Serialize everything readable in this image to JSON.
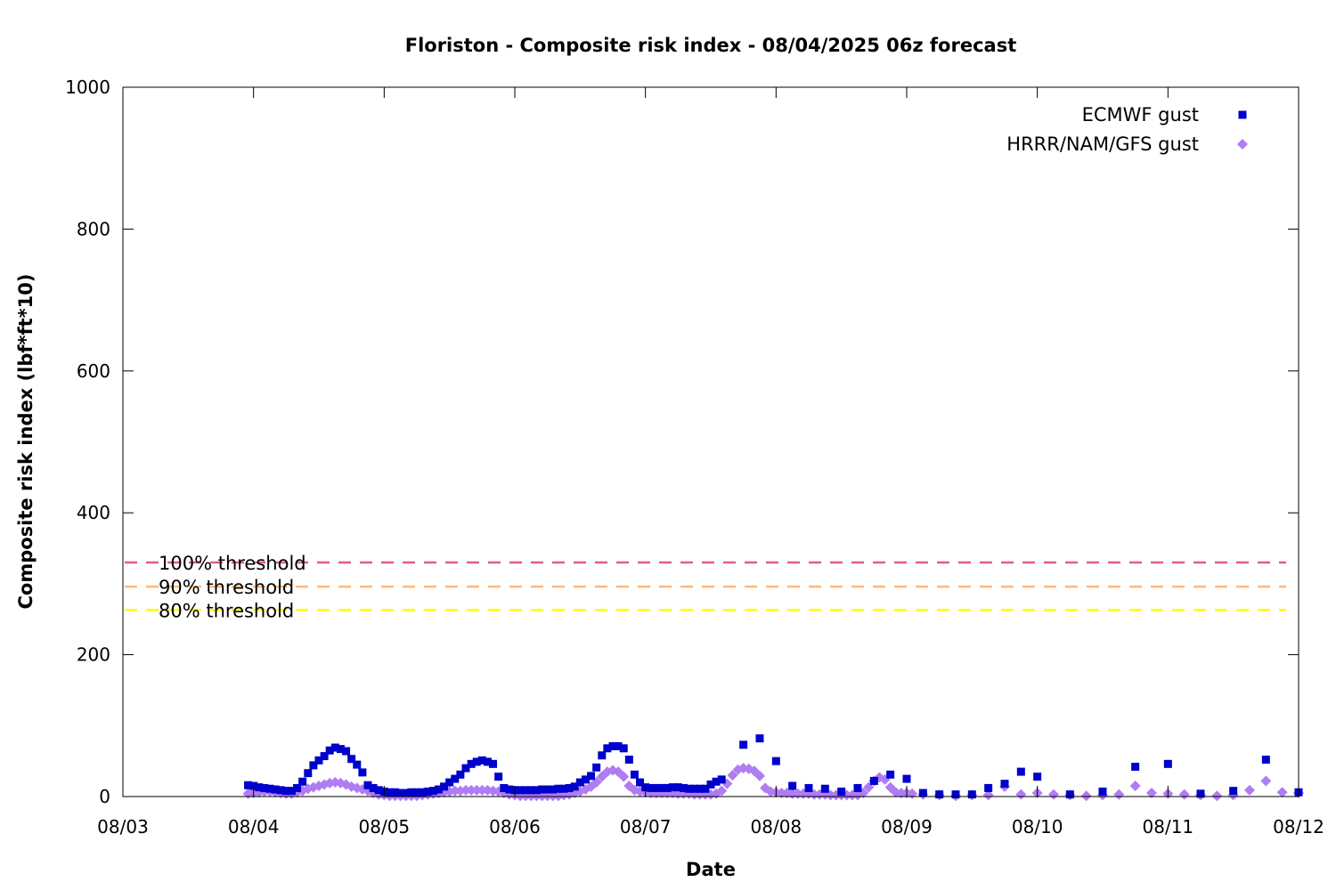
{
  "chart_data": {
    "type": "scatter",
    "title": "Floriston - Composite risk index - 08/04/2025 06z forecast",
    "xlabel": "Date",
    "ylabel": "Composite risk index (lbf*ft*10)",
    "x_unit": "days since 08/03 00z",
    "xlim": [
      0,
      9
    ],
    "ylim": [
      0,
      1000
    ],
    "x_ticks": [
      {
        "x": 0,
        "label": "08/03"
      },
      {
        "x": 1,
        "label": "08/04"
      },
      {
        "x": 2,
        "label": "08/05"
      },
      {
        "x": 3,
        "label": "08/06"
      },
      {
        "x": 4,
        "label": "08/07"
      },
      {
        "x": 5,
        "label": "08/08"
      },
      {
        "x": 6,
        "label": "08/09"
      },
      {
        "x": 7,
        "label": "08/10"
      },
      {
        "x": 8,
        "label": "08/11"
      },
      {
        "x": 9,
        "label": "08/12"
      }
    ],
    "y_ticks": [
      {
        "y": 0,
        "label": "0"
      },
      {
        "y": 200,
        "label": "200"
      },
      {
        "y": 400,
        "label": "400"
      },
      {
        "y": 600,
        "label": "600"
      },
      {
        "y": 800,
        "label": "800"
      },
      {
        "y": 1000,
        "label": "1000"
      }
    ],
    "grid": false,
    "legend_position": "top-right",
    "thresholds": [
      {
        "label": "100% threshold",
        "y": 330,
        "color": "#e0607e"
      },
      {
        "label": "90% threshold",
        "y": 296,
        "color": "#ffb87a"
      },
      {
        "label": "80% threshold",
        "y": 263,
        "color": "#ffff00"
      }
    ],
    "series": [
      {
        "name": "ECMWF gust",
        "marker": "square",
        "color": "#0000cc",
        "points": [
          [
            0.9583,
            16
          ],
          [
            1.0,
            15
          ],
          [
            1.0417,
            13
          ],
          [
            1.0833,
            12
          ],
          [
            1.125,
            11
          ],
          [
            1.1667,
            10
          ],
          [
            1.2083,
            9
          ],
          [
            1.25,
            8
          ],
          [
            1.2917,
            8
          ],
          [
            1.3333,
            12
          ],
          [
            1.375,
            21
          ],
          [
            1.4167,
            33
          ],
          [
            1.4583,
            44
          ],
          [
            1.5,
            51
          ],
          [
            1.5417,
            57
          ],
          [
            1.5833,
            65
          ],
          [
            1.625,
            69
          ],
          [
            1.6667,
            67
          ],
          [
            1.7083,
            64
          ],
          [
            1.75,
            53
          ],
          [
            1.7917,
            45
          ],
          [
            1.8333,
            34
          ],
          [
            1.875,
            16
          ],
          [
            1.9167,
            12
          ],
          [
            1.9583,
            9
          ],
          [
            2.0,
            7
          ],
          [
            2.0417,
            6
          ],
          [
            2.0833,
            6
          ],
          [
            2.125,
            5
          ],
          [
            2.1667,
            5
          ],
          [
            2.2083,
            6
          ],
          [
            2.25,
            6
          ],
          [
            2.2917,
            6
          ],
          [
            2.3333,
            7
          ],
          [
            2.375,
            8
          ],
          [
            2.4167,
            10
          ],
          [
            2.4583,
            14
          ],
          [
            2.5,
            20
          ],
          [
            2.5417,
            25
          ],
          [
            2.5833,
            31
          ],
          [
            2.625,
            40
          ],
          [
            2.6667,
            46
          ],
          [
            2.7083,
            49
          ],
          [
            2.75,
            51
          ],
          [
            2.7917,
            49
          ],
          [
            2.8333,
            46
          ],
          [
            2.875,
            28
          ],
          [
            2.9167,
            12
          ],
          [
            2.9583,
            10
          ],
          [
            3.0,
            9
          ],
          [
            3.0417,
            9
          ],
          [
            3.0833,
            9
          ],
          [
            3.125,
            9
          ],
          [
            3.1667,
            9
          ],
          [
            3.2083,
            10
          ],
          [
            3.25,
            10
          ],
          [
            3.2917,
            10
          ],
          [
            3.3333,
            11
          ],
          [
            3.375,
            11
          ],
          [
            3.4167,
            12
          ],
          [
            3.4583,
            14
          ],
          [
            3.5,
            20
          ],
          [
            3.5417,
            24
          ],
          [
            3.5833,
            29
          ],
          [
            3.625,
            41
          ],
          [
            3.6667,
            58
          ],
          [
            3.7083,
            68
          ],
          [
            3.75,
            71
          ],
          [
            3.7917,
            71
          ],
          [
            3.8333,
            68
          ],
          [
            3.875,
            52
          ],
          [
            3.9167,
            31
          ],
          [
            3.9583,
            20
          ],
          [
            4.0,
            13
          ],
          [
            4.0417,
            12
          ],
          [
            4.0833,
            12
          ],
          [
            4.125,
            12
          ],
          [
            4.1667,
            12
          ],
          [
            4.2083,
            13
          ],
          [
            4.25,
            13
          ],
          [
            4.2917,
            12
          ],
          [
            4.3333,
            11
          ],
          [
            4.375,
            11
          ],
          [
            4.4167,
            11
          ],
          [
            4.4583,
            11
          ],
          [
            4.5,
            17
          ],
          [
            4.5417,
            21
          ],
          [
            4.5833,
            24
          ],
          [
            4.75,
            73
          ],
          [
            4.875,
            82
          ],
          [
            5.0,
            50
          ],
          [
            5.125,
            15
          ],
          [
            5.25,
            12
          ],
          [
            5.375,
            11
          ],
          [
            5.5,
            7
          ],
          [
            5.625,
            12
          ],
          [
            5.75,
            22
          ],
          [
            5.875,
            31
          ],
          [
            6.0,
            25
          ],
          [
            6.125,
            5
          ],
          [
            6.25,
            3
          ],
          [
            6.375,
            3
          ],
          [
            6.5,
            3
          ],
          [
            6.625,
            12
          ],
          [
            6.75,
            18
          ],
          [
            6.875,
            35
          ],
          [
            7.0,
            28
          ],
          [
            7.25,
            3
          ],
          [
            7.5,
            7
          ],
          [
            7.75,
            42
          ],
          [
            8.0,
            46
          ],
          [
            8.25,
            4
          ],
          [
            8.5,
            8
          ],
          [
            8.75,
            52
          ],
          [
            9.0,
            6
          ]
        ]
      },
      {
        "name": "HRRR/NAM/GFS gust",
        "marker": "diamond",
        "color": "#b07cf2",
        "points": [
          [
            0.9583,
            4
          ],
          [
            1.0,
            5
          ],
          [
            1.0417,
            6
          ],
          [
            1.0833,
            7
          ],
          [
            1.125,
            7
          ],
          [
            1.1667,
            6
          ],
          [
            1.2083,
            5
          ],
          [
            1.25,
            4
          ],
          [
            1.2917,
            4
          ],
          [
            1.3333,
            6
          ],
          [
            1.375,
            8
          ],
          [
            1.4167,
            11
          ],
          [
            1.4583,
            13
          ],
          [
            1.5,
            15
          ],
          [
            1.5417,
            17
          ],
          [
            1.5833,
            19
          ],
          [
            1.625,
            20
          ],
          [
            1.6667,
            19
          ],
          [
            1.7083,
            17
          ],
          [
            1.75,
            14
          ],
          [
            1.7917,
            12
          ],
          [
            1.8333,
            10
          ],
          [
            1.875,
            8
          ],
          [
            1.9167,
            5
          ],
          [
            1.9583,
            3
          ],
          [
            2.0,
            2
          ],
          [
            2.0417,
            1
          ],
          [
            2.0833,
            1
          ],
          [
            2.125,
            1
          ],
          [
            2.1667,
            1
          ],
          [
            2.2083,
            1
          ],
          [
            2.25,
            1
          ],
          [
            2.2917,
            2
          ],
          [
            2.3333,
            3
          ],
          [
            2.375,
            4
          ],
          [
            2.4167,
            5
          ],
          [
            2.4583,
            6
          ],
          [
            2.5,
            7
          ],
          [
            2.5417,
            8
          ],
          [
            2.5833,
            8
          ],
          [
            2.625,
            9
          ],
          [
            2.6667,
            9
          ],
          [
            2.7083,
            9
          ],
          [
            2.75,
            9
          ],
          [
            2.7917,
            9
          ],
          [
            2.8333,
            8
          ],
          [
            2.875,
            7
          ],
          [
            2.9167,
            5
          ],
          [
            2.9583,
            3
          ],
          [
            3.0,
            2
          ],
          [
            3.0417,
            1
          ],
          [
            3.0833,
            1
          ],
          [
            3.125,
            1
          ],
          [
            3.1667,
            1
          ],
          [
            3.2083,
            1
          ],
          [
            3.25,
            1
          ],
          [
            3.2917,
            1
          ],
          [
            3.3333,
            1
          ],
          [
            3.375,
            2
          ],
          [
            3.4167,
            3
          ],
          [
            3.4583,
            5
          ],
          [
            3.5,
            7
          ],
          [
            3.5417,
            10
          ],
          [
            3.5833,
            14
          ],
          [
            3.625,
            20
          ],
          [
            3.6667,
            28
          ],
          [
            3.7083,
            35
          ],
          [
            3.75,
            37
          ],
          [
            3.7917,
            35
          ],
          [
            3.8333,
            28
          ],
          [
            3.875,
            15
          ],
          [
            3.9167,
            9
          ],
          [
            3.9583,
            7
          ],
          [
            4.0,
            6
          ],
          [
            4.0417,
            5
          ],
          [
            4.0833,
            5
          ],
          [
            4.125,
            5
          ],
          [
            4.1667,
            5
          ],
          [
            4.2083,
            5
          ],
          [
            4.25,
            4
          ],
          [
            4.2917,
            4
          ],
          [
            4.3333,
            4
          ],
          [
            4.375,
            3
          ],
          [
            4.4167,
            3
          ],
          [
            4.4583,
            3
          ],
          [
            4.5,
            3
          ],
          [
            4.5417,
            4
          ],
          [
            4.5833,
            8
          ],
          [
            4.625,
            18
          ],
          [
            4.6667,
            30
          ],
          [
            4.7083,
            38
          ],
          [
            4.75,
            40
          ],
          [
            4.7917,
            39
          ],
          [
            4.8333,
            36
          ],
          [
            4.875,
            29
          ],
          [
            4.9167,
            12
          ],
          [
            4.9583,
            7
          ],
          [
            5.0,
            6
          ],
          [
            5.0417,
            5
          ],
          [
            5.0833,
            5
          ],
          [
            5.125,
            4
          ],
          [
            5.1667,
            4
          ],
          [
            5.2083,
            4
          ],
          [
            5.25,
            4
          ],
          [
            5.2917,
            3
          ],
          [
            5.3333,
            3
          ],
          [
            5.375,
            3
          ],
          [
            5.4167,
            2
          ],
          [
            5.4583,
            2
          ],
          [
            5.5,
            2
          ],
          [
            5.5417,
            2
          ],
          [
            5.5833,
            2
          ],
          [
            5.625,
            2
          ],
          [
            5.6667,
            5
          ],
          [
            5.7083,
            13
          ],
          [
            5.75,
            22
          ],
          [
            5.7917,
            27
          ],
          [
            5.8333,
            24
          ],
          [
            5.875,
            13
          ],
          [
            5.9167,
            6
          ],
          [
            5.9583,
            5
          ],
          [
            6.0,
            5
          ],
          [
            6.0417,
            4
          ],
          [
            6.125,
            3
          ],
          [
            6.25,
            2
          ],
          [
            6.375,
            1
          ],
          [
            6.5,
            2
          ],
          [
            6.625,
            2
          ],
          [
            6.75,
            14
          ],
          [
            6.875,
            3
          ],
          [
            7.0,
            5
          ],
          [
            7.125,
            3
          ],
          [
            7.25,
            2
          ],
          [
            7.375,
            1
          ],
          [
            7.5,
            2
          ],
          [
            7.625,
            3
          ],
          [
            7.75,
            15
          ],
          [
            7.875,
            5
          ],
          [
            8.0,
            4
          ],
          [
            8.125,
            3
          ],
          [
            8.25,
            2
          ],
          [
            8.375,
            1
          ],
          [
            8.5,
            2
          ],
          [
            8.625,
            9
          ],
          [
            8.75,
            22
          ],
          [
            8.875,
            6
          ],
          [
            9.0,
            5
          ]
        ]
      }
    ]
  }
}
